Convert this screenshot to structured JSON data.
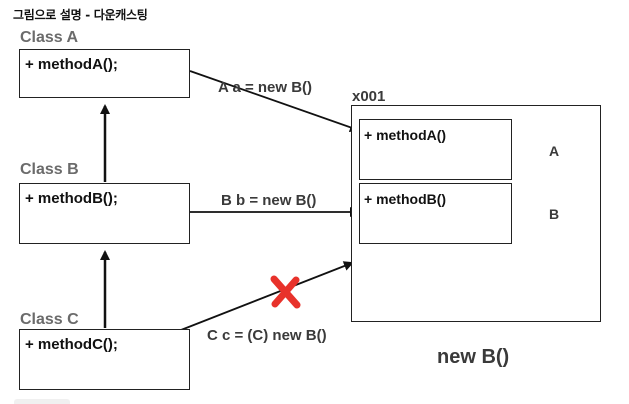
{
  "title": "그림으로 설명 - 다운캐스팅",
  "classes": [
    {
      "label": "Class A",
      "method": "+ methodA();"
    },
    {
      "label": "Class B",
      "method": "+ methodB();"
    },
    {
      "label": "Class C",
      "method": "+ methodC();"
    }
  ],
  "assignments": [
    {
      "text": "A a = new B()",
      "allowed": true
    },
    {
      "text": "B b = new B()",
      "allowed": true
    },
    {
      "text": "C c = (C) new B()",
      "allowed": false
    }
  ],
  "instance": {
    "address": "x001",
    "slots": [
      {
        "method": "+ methodA()",
        "tag": "A"
      },
      {
        "method": "+ methodB()",
        "tag": "B"
      }
    ],
    "caption": "new B()"
  },
  "colors": {
    "line": "#111111",
    "forbidden_mark": "#e8322b",
    "class_label": "#6b6b6b"
  },
  "icons": {
    "forbidden_mark": "x-mark-icon"
  }
}
